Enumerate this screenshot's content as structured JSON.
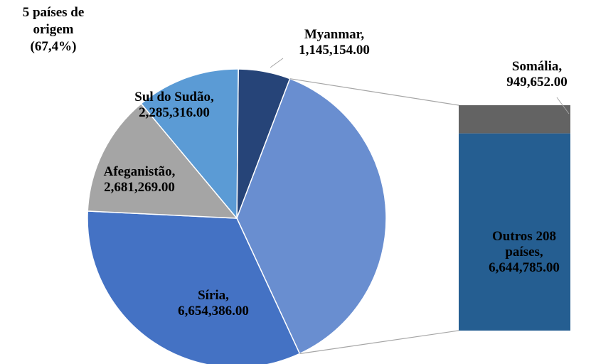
{
  "chart_data": {
    "type": "pie",
    "annotation": [
      "5 países de",
      "origem",
      "(67,4%)"
    ],
    "categories": [
      "Myanmar,",
      "Síria,",
      "Afeganistão,",
      "Sul do Sudão,"
    ],
    "values": [
      1145154,
      6654386,
      2681269,
      2285316
    ],
    "value_labels": [
      "1,145,154.00",
      "6,654,386.00",
      "2,681,269.00",
      "2,285,316.00"
    ],
    "colors": [
      "#264478",
      "#4472c4",
      "#a5a5a5",
      "#5b9bd5"
    ],
    "combined_color": "#698ed0",
    "bar_categories": [
      "Somália,",
      "Outros 208 países,"
    ],
    "bar_values": [
      949652,
      6644785
    ],
    "bar_value_labels": [
      "949,652.00",
      "6,644,785.00"
    ],
    "bar_colors": [
      "#636363",
      "#255e91"
    ]
  }
}
